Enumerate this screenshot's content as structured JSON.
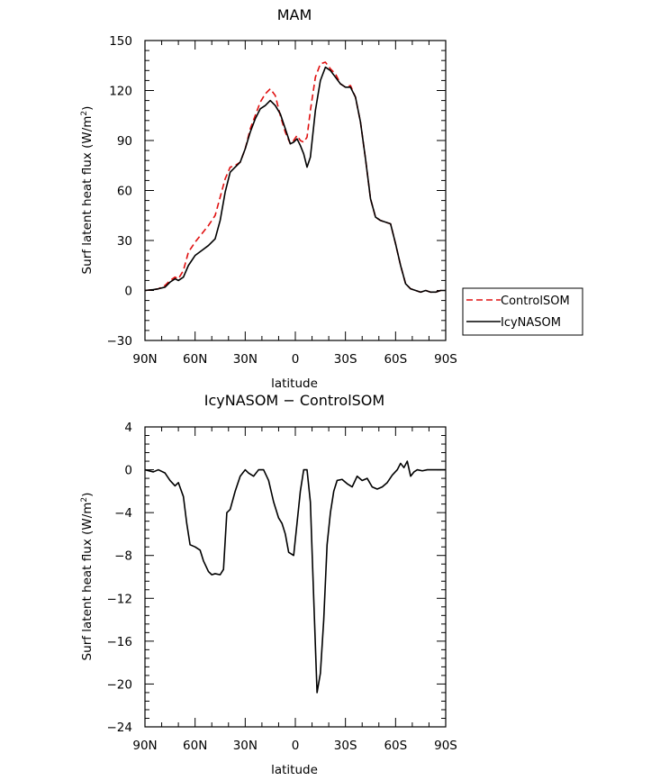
{
  "chart_data": [
    {
      "type": "line",
      "title": "MAM",
      "xlabel": "latitude",
      "ylabel": "Surf latent heat flux (W/m²)",
      "ylabel_main": "Surf latent heat flux (W/m",
      "ylabel_sup": "2",
      "ylabel_close": ")",
      "xlim": [
        90,
        -90
      ],
      "ylim": [
        -30,
        150
      ],
      "x_ticks": [
        90,
        60,
        30,
        0,
        -30,
        -60,
        -90
      ],
      "x_tick_labels": [
        "90N",
        "60N",
        "30N",
        "0",
        "30S",
        "60S",
        "90S"
      ],
      "y_ticks": [
        -30,
        0,
        30,
        60,
        90,
        120,
        150
      ],
      "y_tick_labels": [
        "−30",
        "0",
        "30",
        "60",
        "90",
        "120",
        "150"
      ],
      "legend": {
        "position": "right-outside"
      },
      "series": [
        {
          "name": "ControlSOM",
          "color": "#e01010",
          "dash": "dashed",
          "x": [
            90,
            85,
            82,
            78,
            75,
            72,
            70,
            67,
            64,
            60,
            56,
            52,
            48,
            45,
            42,
            39,
            36,
            33,
            30,
            27,
            24,
            21,
            18,
            15,
            12,
            9,
            6,
            3,
            1,
            -1,
            -3,
            -5,
            -7,
            -9,
            -12,
            -15,
            -18,
            -21,
            -24,
            -27,
            -30,
            -33,
            -36,
            -39,
            -42,
            -45,
            -48,
            -51,
            -54,
            -57,
            -60,
            -63,
            -66,
            -69,
            -72,
            -75,
            -78,
            -81,
            -84,
            -87,
            -90
          ],
          "values": [
            0,
            0.5,
            1,
            3,
            6,
            8,
            7,
            12,
            23,
            29,
            34,
            39,
            45,
            56,
            67,
            74,
            75,
            77,
            85,
            97,
            105,
            113,
            118,
            121,
            117,
            105,
            95,
            88,
            90,
            93,
            90,
            89,
            92,
            108,
            128,
            136,
            137,
            133,
            130,
            124,
            122,
            123,
            116,
            101,
            79,
            55,
            44,
            42,
            41,
            40,
            28,
            15,
            4,
            1,
            0,
            -1,
            0,
            -1,
            -1,
            0,
            0
          ]
        },
        {
          "name": "IcyNASOM",
          "color": "#000000",
          "dash": "solid",
          "x": [
            90,
            85,
            82,
            78,
            75,
            72,
            70,
            67,
            64,
            60,
            56,
            52,
            48,
            45,
            42,
            39,
            36,
            33,
            30,
            27,
            24,
            21,
            18,
            15,
            12,
            9,
            6,
            3,
            1,
            -1,
            -3,
            -5,
            -7,
            -9,
            -12,
            -15,
            -18,
            -21,
            -24,
            -27,
            -30,
            -33,
            -36,
            -39,
            -42,
            -45,
            -48,
            -51,
            -54,
            -57,
            -60,
            -63,
            -66,
            -69,
            -72,
            -75,
            -78,
            -81,
            -84,
            -87,
            -90
          ],
          "values": [
            0,
            0.5,
            1,
            2,
            5,
            7,
            6,
            8,
            15,
            21,
            24,
            27,
            31,
            42,
            59,
            71,
            74,
            77,
            85,
            95,
            103,
            109,
            111,
            114,
            111,
            106,
            97,
            88,
            89,
            91,
            87,
            82,
            74,
            80,
            108,
            126,
            134,
            132,
            128,
            124,
            122,
            122,
            116,
            101,
            79,
            55,
            44,
            42,
            41,
            40,
            28,
            15,
            4,
            1,
            0,
            -1,
            0,
            -1,
            -1,
            0,
            0
          ]
        }
      ]
    },
    {
      "type": "line",
      "title": "IcyNASOM − ControlSOM",
      "xlabel": "latitude",
      "ylabel": "Surf latent heat flux (W/m²)",
      "ylabel_main": "Surf latent heat flux (W/m",
      "ylabel_sup": "2",
      "ylabel_close": ")",
      "xlim": [
        90,
        -90
      ],
      "ylim": [
        -24,
        4
      ],
      "x_ticks": [
        90,
        60,
        30,
        0,
        -30,
        -60,
        -90
      ],
      "x_tick_labels": [
        "90N",
        "60N",
        "30N",
        "0",
        "30S",
        "60S",
        "90S"
      ],
      "y_ticks": [
        -24,
        -20,
        -16,
        -12,
        -8,
        -4,
        0,
        4
      ],
      "y_tick_labels": [
        "−24",
        "−20",
        "−16",
        "−12",
        "−8",
        "−4",
        "0",
        "4"
      ],
      "series": [
        {
          "color": "#000000",
          "dash": "solid",
          "x": [
            90,
            85,
            82,
            78,
            75,
            72,
            70,
            67,
            65,
            63,
            60,
            57,
            55,
            52,
            50,
            48,
            45,
            43,
            41,
            39,
            36,
            33,
            30,
            28,
            25,
            22,
            19,
            16,
            13,
            10,
            8,
            6,
            4,
            1,
            -1,
            -3,
            -5,
            -7,
            -9,
            -11,
            -13,
            -15,
            -17,
            -19,
            -21,
            -23,
            -25,
            -28,
            -31,
            -34,
            -37,
            -40,
            -43,
            -46,
            -49,
            -52,
            -55,
            -58,
            -61,
            -63,
            -65,
            -67,
            -69,
            -71,
            -73,
            -76,
            -79,
            -82,
            -85,
            -88,
            -90
          ],
          "values": [
            0,
            -0.2,
            0,
            -0.3,
            -1,
            -1.5,
            -1.2,
            -2.5,
            -5,
            -7,
            -7.2,
            -7.5,
            -8.5,
            -9.5,
            -9.8,
            -9.7,
            -9.8,
            -9.3,
            -4,
            -3.7,
            -2,
            -0.6,
            0,
            -0.3,
            -0.6,
            0,
            0,
            -1,
            -3,
            -4.5,
            -5,
            -6,
            -7.7,
            -8,
            -5,
            -2,
            0,
            0,
            -3,
            -12,
            -20.8,
            -19,
            -14,
            -7,
            -4,
            -2,
            -1,
            -0.9,
            -1.3,
            -1.6,
            -0.6,
            -1,
            -0.8,
            -1.6,
            -1.8,
            -1.6,
            -1.2,
            -0.5,
            0,
            0.6,
            0.2,
            0.8,
            -0.6,
            -0.2,
            0,
            -0.1,
            0,
            0,
            0,
            0,
            0
          ]
        }
      ]
    }
  ]
}
